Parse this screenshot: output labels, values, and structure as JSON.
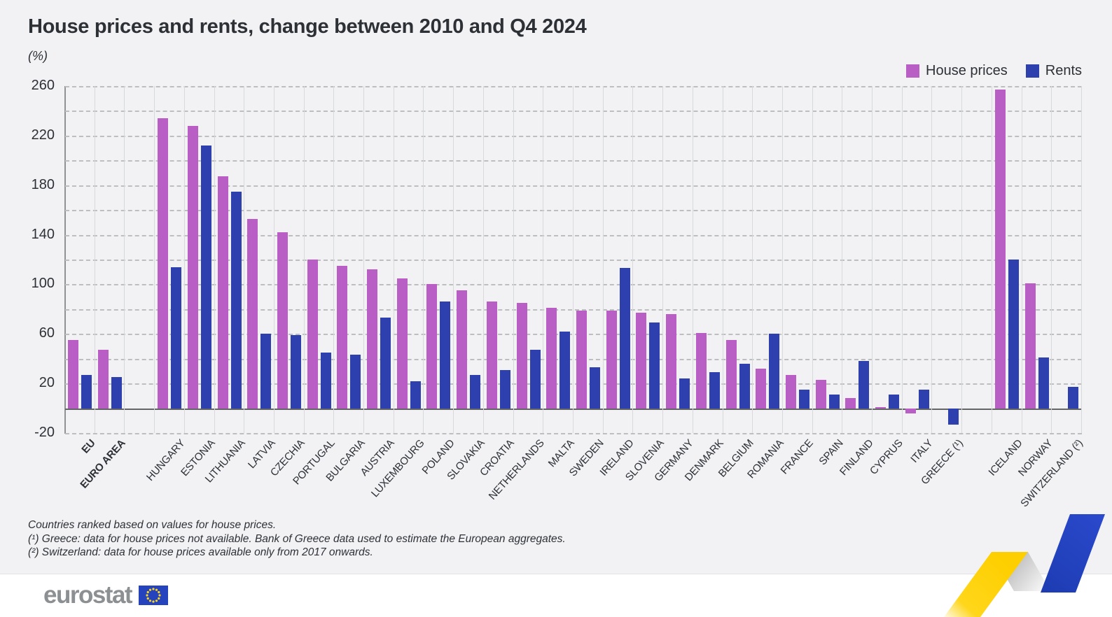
{
  "title": "House prices and rents, change between 2010 and Q4 2024",
  "subtitle": "(%)",
  "legend": {
    "house_prices_label": "House prices",
    "rents_label": "Rents"
  },
  "colors": {
    "house_prices": "#b95ec5",
    "rents": "#2e40ae",
    "ribbon_yellow": "#ffd617",
    "ribbon_blue": "#2243c2",
    "flag_blue": "#2443bd",
    "star_yellow": "#ffd617"
  },
  "footnotes": [
    "Countries ranked based on values for house prices.",
    "(¹) Greece: data for house prices not available. Bank of Greece data used to estimate the European aggregates.",
    "(²) Switzerland: data for house prices available only from 2017 onwards."
  ],
  "footer": {
    "logo_text": "eurostat"
  },
  "chart_data": {
    "type": "bar",
    "title": "House prices and rents, change between 2010 and Q4 2024",
    "unit": "(%)",
    "ylim": [
      -20,
      260
    ],
    "yticks": [
      260,
      220,
      180,
      140,
      100,
      60,
      20,
      -20
    ],
    "grid_step": 20,
    "grid": "dashed-horizontal",
    "legend_position": "top-right",
    "categories": [
      "EU",
      "EURO AREA",
      "HUNGARY",
      "ESTONIA",
      "LITHUANIA",
      "LATVIA",
      "CZECHIA",
      "PORTUGAL",
      "BULGARIA",
      "AUSTRIA",
      "LUXEMBOURG",
      "POLAND",
      "SLOVAKIA",
      "CROATIA",
      "NETHERLANDS",
      "MALTA",
      "SWEDEN",
      "IRELAND",
      "SLOVENIA",
      "GERMANY",
      "DENMARK",
      "BELGIUM",
      "ROMANIA",
      "FRANCE",
      "SPAIN",
      "FINLAND",
      "CYPRUS",
      "ITALY",
      "GREECE (¹)",
      "ICELAND",
      "NORWAY",
      "SWITZERLAND (²)"
    ],
    "bold_categories": [
      "EU",
      "EURO AREA"
    ],
    "gaps_after": [
      1,
      28
    ],
    "series": [
      {
        "name": "House prices",
        "color": "#b95ec5",
        "values": [
          55,
          47,
          234,
          228,
          187,
          153,
          142,
          120,
          115,
          112,
          105,
          100,
          95,
          86,
          85,
          81,
          79,
          79,
          77,
          76,
          61,
          55,
          32,
          27,
          23,
          8,
          1,
          -4,
          null,
          257,
          101,
          null
        ]
      },
      {
        "name": "Rents",
        "color": "#2e40ae",
        "values": [
          27,
          25,
          114,
          212,
          175,
          60,
          59,
          45,
          43,
          73,
          22,
          86,
          27,
          31,
          47,
          62,
          33,
          113,
          69,
          24,
          29,
          36,
          60,
          15,
          11,
          38,
          11,
          15,
          -13,
          120,
          41,
          17
        ]
      }
    ]
  }
}
